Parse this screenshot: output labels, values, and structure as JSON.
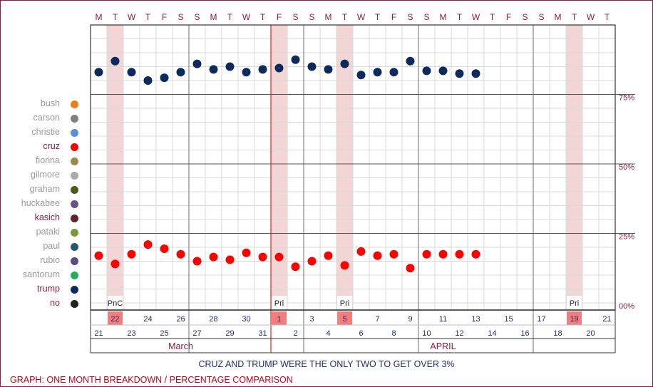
{
  "chart_data": {
    "type": "scatter",
    "weekday_headers": [
      "M",
      "T",
      "W",
      "T",
      "F",
      "S",
      "S",
      "M",
      "T",
      "W",
      "T",
      "F",
      "S",
      "S",
      "M",
      "T",
      "W",
      "T",
      "F",
      "S",
      "S",
      "M",
      "T",
      "W",
      "T",
      "F",
      "S",
      "S",
      "M",
      "T",
      "W",
      "T"
    ],
    "y_ticks": [
      "75%",
      "50%",
      "25%",
      "00%"
    ],
    "ylim": [
      0,
      100
    ],
    "x_dates": [
      "21",
      "22",
      "23",
      "24",
      "25",
      "26",
      "27",
      "28",
      "29",
      "30",
      "31",
      "1",
      "2",
      "3",
      "4",
      "5",
      "6",
      "7",
      "8",
      "9",
      "10",
      "11",
      "12",
      "13",
      "14",
      "15",
      "16",
      "17",
      "18",
      "19",
      "20",
      "21"
    ],
    "months": [
      {
        "label": "March",
        "start_index": 0,
        "end_index": 10
      },
      {
        "label": "APRIL",
        "start_index": 11,
        "end_index": 31
      }
    ],
    "highlight_days": [
      1,
      11,
      15,
      29
    ],
    "event_labels": [
      {
        "index": 1,
        "label": "PnC"
      },
      {
        "index": 11,
        "label": "Pri"
      },
      {
        "index": 15,
        "label": "Pri"
      },
      {
        "index": 29,
        "label": "Pri"
      }
    ],
    "series": [
      {
        "name": "trump",
        "color": "#0d2a5e",
        "values": [
          83,
          87,
          83,
          80,
          81,
          83,
          86,
          84,
          85,
          83,
          84,
          84.5,
          87.5,
          85,
          84,
          86,
          82,
          83,
          83,
          87,
          83.5,
          83.5,
          82.5,
          82.5,
          null,
          null,
          null,
          null,
          null,
          null,
          null,
          null
        ]
      },
      {
        "name": "cruz",
        "color": "#ff0000",
        "values": [
          17,
          14,
          17.5,
          21,
          19.5,
          17.5,
          15,
          16.5,
          15.5,
          18,
          16.5,
          16.5,
          13,
          15,
          17,
          13.5,
          18.5,
          17,
          17.5,
          12.5,
          17.5,
          17.5,
          17.5,
          17.5,
          null,
          null,
          null,
          null,
          null,
          null,
          null,
          null
        ]
      }
    ]
  },
  "legend": [
    {
      "name": "bush",
      "color": "#f07d1a",
      "highlight": false
    },
    {
      "name": "carson",
      "color": "#808080",
      "highlight": false
    },
    {
      "name": "christie",
      "color": "#5b8ed6",
      "highlight": false
    },
    {
      "name": "cruz",
      "color": "#ff0000",
      "highlight": true
    },
    {
      "name": "fiorina",
      "color": "#9b8a4e",
      "highlight": false
    },
    {
      "name": "gilmore",
      "color": "#aaaaaa",
      "highlight": false
    },
    {
      "name": "graham",
      "color": "#4a5a22",
      "highlight": false
    },
    {
      "name": "huckabee",
      "color": "#6a4f8f",
      "highlight": false
    },
    {
      "name": "kasich",
      "color": "#5e2426",
      "highlight": true
    },
    {
      "name": "pataki",
      "color": "#7a9a3a",
      "highlight": false
    },
    {
      "name": "paul",
      "color": "#245a6e",
      "highlight": false
    },
    {
      "name": "rubio",
      "color": "#5a4a8a",
      "highlight": false
    },
    {
      "name": "santorum",
      "color": "#1eb35a",
      "highlight": false
    },
    {
      "name": "trump",
      "color": "#0d2a5e",
      "highlight": true
    },
    {
      "name": "no",
      "color": "#222222",
      "highlight": true
    }
  ],
  "caption": "CRUZ AND TRUMP WERE THE ONLY TWO TO GET OVER 3%",
  "subtitle": "GRAPH: ONE MONTH BREAKDOWN / PERCENTAGE COMPARISON"
}
